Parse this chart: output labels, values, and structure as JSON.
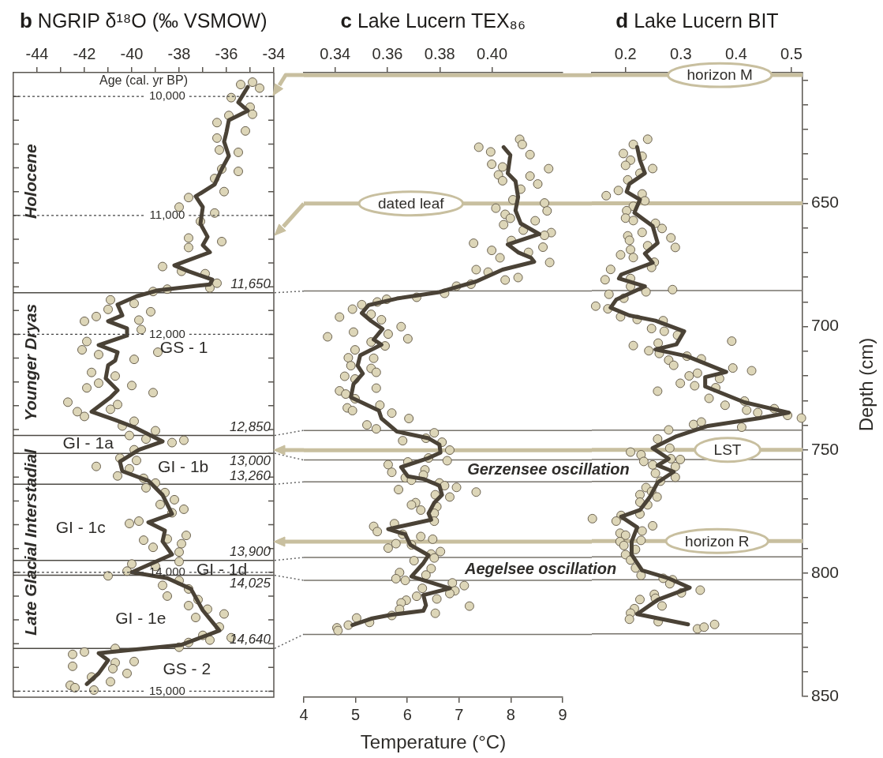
{
  "chart_data": [
    {
      "type": "scatter",
      "title": "b NGRIP δ¹⁸O (‰ VSMOW)",
      "ylabel": "Age (cal. yr BP)",
      "grid": "y",
      "xlim": [
        -45,
        -34
      ],
      "xticks": [
        -44,
        {
          "value": -43,
          "label": null
        },
        -42,
        {
          "value": -41,
          "label": null
        },
        -40,
        {
          "value": -39,
          "label": null
        },
        -38,
        {
          "value": -37,
          "label": null
        },
        -36,
        {
          "value": -35,
          "label": null
        },
        -34
      ],
      "ylim": [
        15050,
        9800
      ],
      "yticks": [
        {
          "value": 10000,
          "label": "10,000"
        },
        {
          "value": 10200,
          "label": null
        },
        {
          "value": 10400,
          "label": null
        },
        {
          "value": 10600,
          "label": null
        },
        {
          "value": 10800,
          "label": null
        },
        {
          "value": 11000,
          "label": "11,000"
        },
        {
          "value": 11200,
          "label": null
        },
        {
          "value": 11400,
          "label": null
        },
        {
          "value": 11600,
          "label": null
        },
        {
          "value": 11800,
          "label": null
        },
        {
          "value": 12000,
          "label": "12,000"
        },
        {
          "value": 12200,
          "label": null
        },
        {
          "value": 12400,
          "label": null
        },
        {
          "value": 12600,
          "label": null
        },
        {
          "value": 12800,
          "label": null
        },
        {
          "value": 13000,
          "label": null
        },
        {
          "value": 13200,
          "label": null
        },
        {
          "value": 13400,
          "label": null
        },
        {
          "value": 13600,
          "label": null
        },
        {
          "value": 13800,
          "label": null
        },
        {
          "value": 14000,
          "label": "14,000"
        },
        {
          "value": 14200,
          "label": null
        },
        {
          "value": 14400,
          "label": null
        },
        {
          "value": 14600,
          "label": null
        },
        {
          "value": 14800,
          "label": null
        },
        {
          "value": 15000,
          "label": "15,000"
        }
      ],
      "series": [
        {
          "type": "scatter",
          "marker": "circle",
          "color": "#ddd6b8",
          "x": [
            -34.9,
            -35.4,
            -34.6,
            -35.8,
            -35.0,
            -34.9,
            -35.9,
            -36.4,
            -35.2,
            -36.4,
            -36.3,
            -35.5,
            -36.2,
            -35.5,
            -36.5,
            -36.1,
            -37.6,
            -38.0,
            -36.5,
            -37.1,
            -37.6,
            -36.2,
            -37.6,
            -38.7,
            -37.9,
            -36.9,
            -36.4,
            -36.7,
            -38.5,
            -39.1,
            -40.9,
            -39.9,
            -41.0,
            -39.2,
            -41.5,
            -39.7,
            -42.0,
            -39.6,
            -41.9,
            -42.1,
            -38.9,
            -41.4,
            -39.9,
            -41.7,
            -40.7,
            -41.4,
            -40.0,
            -41.9,
            -39.1,
            -42.7,
            -40.6,
            -40.9,
            -42.3,
            -42.0,
            -39.9,
            -40.4,
            -39.0,
            -40.1,
            -39.4,
            -37.8,
            -38.3,
            -39.9,
            -40.5,
            -39.8,
            -41.5,
            -40.1,
            -40.6,
            -39.5,
            -39.0,
            -39.4,
            -38.6,
            -38.2,
            -38.8,
            -37.8,
            -38.3,
            -39.7,
            -40.1,
            -37.7,
            -38.5,
            -39.5,
            -37.9,
            -39.1,
            -38.0,
            -38.0,
            -40.0,
            -39.0,
            -40.2,
            -41.0,
            -38.0,
            -38.7,
            -37.6,
            -38.5,
            -37.2,
            -37.6,
            -36.8,
            -36.1,
            -37.3,
            -36.3,
            -37.0,
            -35.8,
            -36.7,
            -37.6,
            -38.0,
            -40.7,
            -42.0,
            -42.5,
            -39.9,
            -40.7,
            -42.5,
            -40.8,
            -40.2,
            -41.7,
            -40.9,
            -42.6,
            -42.4,
            -41.6
          ],
          "values": [
            9880,
            9900,
            9930,
            10010,
            10090,
            10150,
            10160,
            10220,
            10290,
            10350,
            10450,
            10470,
            10610,
            10630,
            10690,
            10800,
            10850,
            10930,
            10980,
            11050,
            11190,
            11220,
            11270,
            11430,
            11470,
            11490,
            11570,
            11610,
            11620,
            11640,
            11710,
            11740,
            11790,
            11810,
            11850,
            11880,
            11890,
            11960,
            12060,
            12130,
            12150,
            12170,
            12210,
            12320,
            12350,
            12410,
            12430,
            12450,
            12490,
            12570,
            12590,
            12630,
            12650,
            12690,
            12730,
            12770,
            12810,
            12850,
            12880,
            12890,
            12910,
            12970,
            13040,
            13060,
            13110,
            13130,
            13190,
            13210,
            13250,
            13290,
            13330,
            13390,
            13430,
            13470,
            13500,
            13570,
            13590,
            13690,
            13720,
            13730,
            13760,
            13790,
            13830,
            13910,
            13930,
            13950,
            13990,
            14030,
            14070,
            14110,
            14140,
            14200,
            14230,
            14280,
            14310,
            14350,
            14380,
            14460,
            14530,
            14550,
            14570,
            14590,
            14630,
            14640,
            14670,
            14690,
            14750,
            14760,
            14790,
            14810,
            14850,
            14880,
            14920,
            14950,
            14970,
            14990
          ]
        },
        {
          "type": "line",
          "marker": "none",
          "color": "#4a4236",
          "x": [
            -35.1,
            -35.5,
            -35.1,
            -35.9,
            -36.0,
            -36.1,
            -35.9,
            -36.2,
            -36.5,
            -37.3,
            -37.0,
            -37.1,
            -36.8,
            -37.0,
            -36.7,
            -38.2,
            -37.6,
            -36.6,
            -36.7,
            -38.9,
            -39.8,
            -40.6,
            -40.4,
            -41.0,
            -40.2,
            -40.2,
            -41.4,
            -40.6,
            -40.7,
            -41.0,
            -41.1,
            -40.6,
            -40.9,
            -41.7,
            -40.7,
            -39.9,
            -38.7,
            -39.7,
            -40.5,
            -40.4,
            -39.3,
            -38.7,
            -38.3,
            -39.3,
            -38.6,
            -38.7,
            -38.3,
            -40.0,
            -38.5,
            -37.5,
            -37.0,
            -36.3,
            -37.9,
            -41.4,
            -41.0,
            -41.4,
            -41.9
          ],
          "values": [
            9920,
            10050,
            10120,
            10200,
            10300,
            10380,
            10500,
            10610,
            10740,
            10840,
            10930,
            11070,
            11180,
            11250,
            11310,
            11420,
            11470,
            11540,
            11580,
            11630,
            11680,
            11750,
            11840,
            11890,
            11950,
            12010,
            12090,
            12150,
            12220,
            12260,
            12370,
            12470,
            12530,
            12650,
            12720,
            12780,
            12900,
            12970,
            13070,
            13150,
            13230,
            13350,
            13510,
            13580,
            13650,
            13740,
            13850,
            14000,
            14050,
            14140,
            14320,
            14490,
            14610,
            14680,
            14740,
            14850,
            14940
          ]
        }
      ],
      "ref_lines": [
        {
          "axis": "y",
          "value": 11650,
          "label": "11,650",
          "color": "#4d4a44"
        },
        {
          "axis": "y",
          "value": 12850,
          "label": "12,850",
          "color": "#4d4a44"
        },
        {
          "axis": "y",
          "value": 13000,
          "label": "13,000",
          "color": "#4d4a44"
        },
        {
          "axis": "y",
          "value": 13260,
          "label": "13,260",
          "color": "#4d4a44"
        },
        {
          "axis": "y",
          "value": 13900,
          "label": "13,900",
          "color": "#4d4a44"
        },
        {
          "axis": "y",
          "value": 14025,
          "label": "14,025",
          "color": "#4d4a44"
        },
        {
          "axis": "y",
          "value": 14640,
          "label": "14,640",
          "color": "#4d4a44"
        }
      ],
      "annotations": [
        "Holocene",
        "Younger Dryas",
        "Late Glacial Interstadial",
        "GS - 1",
        "GI - 1a",
        "GI - 1b",
        "GI - 1c",
        "GI - 1d",
        "GI - 1e",
        "GS - 2"
      ]
    },
    {
      "type": "scatter",
      "title": "c Lake Lucern TEX₈₆",
      "xlabel": "Temperature (°C)",
      "tick_labels": "x",
      "xlim": [
        4,
        9
      ],
      "xticks": [
        4,
        5,
        6,
        7,
        8,
        9
      ],
      "x2lim": [
        0.328,
        0.427
      ],
      "x2ticks": [
        0.34,
        0.36,
        0.38,
        {
          "value": 0.4,
          "label": "0.40"
        }
      ],
      "ylim": [
        850,
        597
      ],
      "series": [
        {
          "type": "scatter",
          "marker": "circle",
          "color": "#ddd6b8",
          "x": [
            7.38,
            8.17,
            8.22,
            7.61,
            8.37,
            7.63,
            7.84,
            8.73,
            7.76,
            7.84,
            8.37,
            8.52,
            8.19,
            8.04,
            8.65,
            7.71,
            8.7,
            7.89,
            7.99,
            7.86,
            8.47,
            8.24,
            8.78,
            8.65,
            8.01,
            7.28,
            8.62,
            7.63,
            8.34,
            7.79,
            8.75,
            7.33,
            7.56,
            7.89,
            8.14,
            7.23,
            6.95,
            6.72,
            6.18,
            5.6,
            5.42,
            5.12,
            4.94,
            4.69,
            5.3,
            5.5,
            5.88,
            4.96,
            4.46,
            6.01,
            5.63,
            5.3,
            5.57,
            4.99,
            4.86,
            5.35,
            4.91,
            5.3,
            5.4,
            4.79,
            4.99,
            5.4,
            4.69,
            4.81,
            4.99,
            4.84,
            4.94,
            5.47,
            5.7,
            6.03,
            5.22,
            5.4,
            6.52,
            5.91,
            6.36,
            6.67,
            6.82,
            6.77,
            6.41,
            6.01,
            5.63,
            5.7,
            6.34,
            6.31,
            5.96,
            6.08,
            6.62,
            6.72,
            6.95,
            5.83,
            7.33,
            6.82,
            6.54,
            6.16,
            6.08,
            6.57,
            6.26,
            6.52,
            6.52,
            5.75,
            5.35,
            5.42,
            5.91,
            6.26,
            6.49,
            5.78,
            5.63,
            6.08,
            6.64,
            6.46,
            6.52,
            6.13,
            6.46,
            5.85,
            5.78,
            5.96,
            6.36,
            6.87,
            7.1,
            6.29,
            6.92,
            6.82,
            6.18,
            6.57,
            5.98,
            5.88,
            7.2,
            5.85,
            6.54,
            5.7,
            5.02,
            5.27,
            4.86,
            4.64,
            4.66
          ],
          "values": [
            627.2,
            624,
            626.1,
            629.1,
            630.2,
            634.1,
            635.2,
            635.9,
            638.4,
            640.8,
            638.9,
            642.1,
            644.2,
            648.5,
            649.8,
            651.9,
            653,
            654.4,
            656,
            658.6,
            657,
            660.8,
            661.8,
            662.9,
            665,
            666.1,
            667.7,
            669,
            669.8,
            672,
            673.9,
            676.8,
            677.8,
            681,
            680,
            682.7,
            683.5,
            686.4,
            688,
            688.8,
            689.9,
            691,
            692.8,
            696,
            694.9,
            697.1,
            699.9,
            702.1,
            704,
            704.8,
            702.9,
            706.1,
            707.7,
            709.3,
            712.5,
            712.7,
            715.7,
            716.8,
            718.4,
            720,
            721.1,
            724.8,
            725.9,
            727.2,
            729.1,
            732.8,
            733.9,
            731.7,
            734.9,
            737.1,
            739.7,
            741.3,
            742.9,
            746.1,
            745.1,
            746.7,
            749.9,
            754.2,
            753.1,
            754.7,
            755.8,
            758.9,
            757.9,
            760,
            761.1,
            762.1,
            763.2,
            764.3,
            765,
            765.9,
            766.9,
            768.9,
            768,
            771.2,
            772.1,
            772.8,
            774.2,
            775.5,
            778.7,
            779.7,
            780.8,
            782.9,
            784,
            784.9,
            786,
            787.8,
            789.6,
            788.3,
            791,
            792,
            793.6,
            794.7,
            797.9,
            799.5,
            802,
            802.7,
            800.5,
            803.7,
            804.8,
            805.9,
            806.9,
            808,
            809.1,
            810.2,
            810.7,
            811.8,
            813.1,
            814.4,
            816,
            816.9,
            817.9,
            819.7,
            820.8,
            821.9,
            823
          ]
        },
        {
          "type": "line",
          "marker": "none",
          "color": "#4a4236",
          "x": [
            7.86,
            7.99,
            7.94,
            8.09,
            8.14,
            8.09,
            8.19,
            8.55,
            7.94,
            8.14,
            8.39,
            8.45,
            7.84,
            7.33,
            6.62,
            5.8,
            5.25,
            5.12,
            5.3,
            5.52,
            5.35,
            5.5,
            5.09,
            5.04,
            5.14,
            4.96,
            4.91,
            5.45,
            5.5,
            5.8,
            6.41,
            6.62,
            6.64,
            6.41,
            5.88,
            6.01,
            6.31,
            6.62,
            6.67,
            6.52,
            6.41,
            6.46,
            5.63,
            5.96,
            6.06,
            6.41,
            6.31,
            6.08,
            6.82,
            6.31,
            6.36,
            6.31,
            5.7,
            5.3,
            4.94
          ],
          "values": [
            627.2,
            630.4,
            637.8,
            641,
            647.4,
            652.8,
            658.1,
            662.4,
            666.6,
            669.8,
            672,
            673.6,
            676.8,
            681.6,
            685.9,
            688.5,
            691.2,
            694.4,
            697.6,
            700.8,
            705.1,
            707.2,
            711.5,
            715.7,
            718.9,
            723.2,
            728.5,
            733.9,
            737.1,
            742.4,
            745.1,
            747.7,
            750.9,
            753.1,
            756.8,
            760.5,
            761.6,
            764.3,
            768,
            771.2,
            775.5,
            778.1,
            781.9,
            784,
            788.3,
            792.5,
            795.7,
            801.1,
            805.9,
            808.6,
            812.8,
            815,
            816.6,
            818.2,
            820.8
          ]
        }
      ],
      "ref_lines": [
        {
          "axis": "y",
          "value": 685.4,
          "color": "#77736b"
        },
        {
          "axis": "y",
          "value": 742.0,
          "color": "#77736b"
        },
        {
          "axis": "y",
          "value": 753.9,
          "color": "#77736b"
        },
        {
          "axis": "y",
          "value": 762.8,
          "color": "#77736b"
        },
        {
          "axis": "y",
          "value": 793.4,
          "color": "#77736b"
        },
        {
          "axis": "y",
          "value": 802.7,
          "color": "#77736b"
        },
        {
          "axis": "y",
          "value": 824.6,
          "color": "#77736b"
        },
        {
          "axis": "y",
          "value": 598,
          "color": "#c8bf9f"
        },
        {
          "axis": "y",
          "value": 650,
          "label": "dated leaf",
          "color": "#c8bf9f"
        },
        {
          "axis": "y",
          "value": 750,
          "color": "#c8bf9f"
        },
        {
          "axis": "y",
          "value": 787,
          "color": "#c8bf9f"
        }
      ],
      "annotations": [
        "Gerzensee oscillation",
        "Aegelsee oscillation"
      ]
    },
    {
      "type": "scatter",
      "title": "d Lake Lucern BIT",
      "ylabel": "Depth (cm)",
      "xlim": [
        0.139,
        0.52
      ],
      "xticks": [
        0.2,
        0.3,
        0.4,
        0.5
      ],
      "ylim": [
        850,
        597
      ],
      "yticks": [
        {
          "value": 600,
          "label": null
        },
        {
          "value": 610,
          "label": null
        },
        {
          "value": 620,
          "label": null
        },
        {
          "value": 630,
          "label": null
        },
        {
          "value": 640,
          "label": null
        },
        650,
        {
          "value": 660,
          "label": null
        },
        {
          "value": 670,
          "label": null
        },
        {
          "value": 680,
          "label": null
        },
        {
          "value": 690,
          "label": null
        },
        700,
        {
          "value": 710,
          "label": null
        },
        {
          "value": 720,
          "label": null
        },
        {
          "value": 730,
          "label": null
        },
        {
          "value": 740,
          "label": null
        },
        750,
        {
          "value": 760,
          "label": null
        },
        {
          "value": 770,
          "label": null
        },
        {
          "value": 780,
          "label": null
        },
        {
          "value": 790,
          "label": null
        },
        800,
        {
          "value": 810,
          "label": null
        },
        {
          "value": 820,
          "label": null
        },
        {
          "value": 830,
          "label": null
        },
        {
          "value": 840,
          "label": null
        },
        850
      ],
      "series": [
        {
          "type": "scatter",
          "marker": "circle",
          "color": "#ddd6b8",
          "x": [
            0.24,
            0.214,
            0.196,
            0.23,
            0.209,
            0.2,
            0.249,
            0.226,
            0.204,
            0.187,
            0.165,
            0.23,
            0.235,
            0.214,
            0.202,
            0.2,
            0.214,
            0.254,
            0.266,
            0.23,
            0.204,
            0.282,
            0.207,
            0.29,
            0.24,
            0.209,
            0.191,
            0.214,
            0.252,
            0.247,
            0.173,
            0.163,
            0.209,
            0.209,
            0.285,
            0.237,
            0.17,
            0.146,
            0.168,
            0.197,
            0.191,
            0.221,
            0.268,
            0.247,
            0.27,
            0.294,
            0.214,
            0.259,
            0.392,
            0.242,
            0.261,
            0.278,
            0.287,
            0.311,
            0.337,
            0.394,
            0.428,
            0.315,
            0.33,
            0.299,
            0.325,
            0.37,
            0.363,
            0.258,
            0.351,
            0.38,
            0.415,
            0.419,
            0.439,
            0.469,
            0.493,
            0.518,
            0.323,
            0.337,
            0.278,
            0.41,
            0.258,
            0.209,
            0.228,
            0.28,
            0.233,
            0.299,
            0.249,
            0.282,
            0.29,
            0.254,
            0.29,
            0.263,
            0.237,
            0.247,
            0.226,
            0.257,
            0.226,
            0.24,
            0.226,
            0.14,
            0.192,
            0.183,
            0.249,
            0.23,
            0.19,
            0.2,
            0.228,
            0.19,
            0.197,
            0.218,
            0.2,
            0.209,
            0.218,
            0.228,
            0.268,
            0.285,
            0.28,
            0.301,
            0.335,
            0.252,
            0.254,
            0.226,
            0.266,
            0.216,
            0.209,
            0.207,
            0.259,
            0.33,
            0.342,
            0.361
          ],
          "values": [
            624,
            626.1,
            629.8,
            630.9,
            632.5,
            634.6,
            635.9,
            637.8,
            640.5,
            644.8,
            646.9,
            646.2,
            649,
            651.2,
            653,
            656,
            657,
            658.1,
            660.2,
            661.8,
            663.2,
            664,
            665,
            667.9,
            667.2,
            668.8,
            670.9,
            672,
            673.9,
            676,
            676.8,
            681,
            680.5,
            683.7,
            685,
            685.9,
            686.9,
            691.7,
            692.8,
            688.5,
            696,
            697.1,
            697.6,
            700.8,
            701.9,
            703.5,
            707.7,
            706.7,
            705.9,
            709.8,
            710.9,
            713.6,
            715.7,
            712,
            713.1,
            716.8,
            717.9,
            720,
            718.9,
            723,
            724,
            721.1,
            724.8,
            726.2,
            729.1,
            731.9,
            730.2,
            733.9,
            734.9,
            733.3,
            736,
            737.1,
            739.7,
            738.7,
            741.9,
            740.8,
            745.6,
            750.9,
            752,
            749.3,
            754.7,
            753.9,
            756.1,
            753.6,
            756.8,
            759.5,
            761.1,
            762.7,
            765.3,
            766.9,
            768.2,
            769.1,
            771.2,
            772.3,
            776,
            777.9,
            776.6,
            778.9,
            780.8,
            782.9,
            783.8,
            784.6,
            786.7,
            787.2,
            788.8,
            790.4,
            792.5,
            794.7,
            797.9,
            800.9,
            802.1,
            802.7,
            804.3,
            808,
            806.9,
            808.6,
            810.2,
            810.7,
            813.3,
            814.4,
            816.2,
            818.7,
            819.7,
            822.6,
            821.9,
            820.8
          ]
        },
        {
          "type": "line",
          "marker": "none",
          "color": "#4a4236",
          "x": [
            0.221,
            0.226,
            0.235,
            0.207,
            0.202,
            0.226,
            0.216,
            0.249,
            0.258,
            0.235,
            0.249,
            0.192,
            0.188,
            0.235,
            0.183,
            0.173,
            0.207,
            0.254,
            0.306,
            0.292,
            0.254,
            0.311,
            0.382,
            0.344,
            0.344,
            0.415,
            0.495,
            0.443,
            0.349,
            0.292,
            0.249,
            0.278,
            0.258,
            0.287,
            0.258,
            0.244,
            0.226,
            0.192,
            0.221,
            0.211,
            0.211,
            0.23,
            0.278,
            0.316,
            0.259,
            0.221,
            0.313
          ],
          "values": [
            627.2,
            632.5,
            637.8,
            642.1,
            645.3,
            648.5,
            653.8,
            659.2,
            666.1,
            670.4,
            674.1,
            678.9,
            680.5,
            683.7,
            689.1,
            692.3,
            695.5,
            697.6,
            701.9,
            707.2,
            709.3,
            712,
            718.4,
            720.5,
            724.3,
            730.7,
            734.9,
            737.1,
            740.3,
            744.5,
            749.3,
            753.6,
            756.3,
            758.9,
            763.2,
            769.1,
            774.4,
            777.1,
            781.4,
            787.2,
            792.5,
            798.9,
            802.1,
            805.9,
            810.7,
            816.6,
            820.8
          ]
        }
      ],
      "ref_lines": [
        {
          "axis": "y",
          "value": 685.4,
          "color": "#77736b"
        },
        {
          "axis": "y",
          "value": 742.0,
          "color": "#77736b"
        },
        {
          "axis": "y",
          "value": 753.9,
          "color": "#77736b"
        },
        {
          "axis": "y",
          "value": 762.8,
          "color": "#77736b"
        },
        {
          "axis": "y",
          "value": 793.4,
          "color": "#77736b"
        },
        {
          "axis": "y",
          "value": 802.7,
          "color": "#77736b"
        },
        {
          "axis": "y",
          "value": 824.6,
          "color": "#77736b"
        },
        {
          "axis": "y",
          "value": 598,
          "label": "horizon M",
          "color": "#c8bf9f"
        },
        {
          "axis": "y",
          "value": 650,
          "color": "#c8bf9f"
        },
        {
          "axis": "y",
          "value": 750,
          "label": "LST",
          "color": "#c8bf9f"
        },
        {
          "axis": "y",
          "value": 787,
          "label": "horizon R",
          "color": "#c8bf9f"
        }
      ]
    }
  ]
}
